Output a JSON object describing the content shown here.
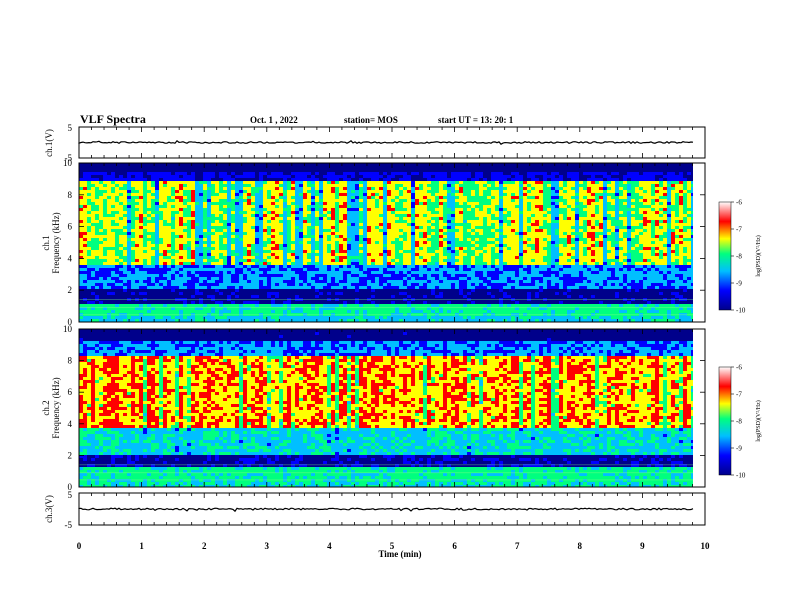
{
  "header": {
    "title": "VLF Spectra",
    "date": "Oct. 1 , 2022",
    "station": "station= MOS",
    "start_ut": "start UT = 13: 20: 1"
  },
  "colormap": [
    "#00008b",
    "#0000ff",
    "#00bfff",
    "#00ff7f",
    "#ffff00",
    "#ff0000",
    "#ffffff"
  ],
  "chart_data": [
    {
      "type": "line",
      "panel": "ch1-waveform",
      "ylabel": "ch.1(V)",
      "yticks": [
        "5",
        "-5"
      ],
      "ylim": [
        -5,
        5
      ],
      "baseline": 0
    },
    {
      "type": "heatmap",
      "panel": "ch1-spectrogram",
      "ylabel_top": "ch.1",
      "ylabel": "Frequency (kHz)",
      "yticks": [
        "0",
        "2",
        "4",
        "6",
        "8",
        "10"
      ],
      "ylim": [
        0,
        10
      ],
      "colorbar": {
        "label": "log(PSD)(V²/Hz)",
        "ticks": [
          "-6",
          "-7",
          "-8",
          "-9",
          "-10"
        ],
        "range": [
          -10,
          -6
        ]
      }
    },
    {
      "type": "heatmap",
      "panel": "ch2-spectrogram",
      "ylabel_top": "ch.2",
      "ylabel": "Frequency (kHz)",
      "yticks": [
        "0",
        "2",
        "4",
        "6",
        "8",
        "10"
      ],
      "ylim": [
        0,
        10
      ],
      "colorbar": {
        "label": "log(PSD)(V²/Hz)",
        "ticks": [
          "-6",
          "-7",
          "-8",
          "-9",
          "-10"
        ],
        "range": [
          -10,
          -6
        ]
      }
    },
    {
      "type": "line",
      "panel": "ch3-waveform",
      "ylabel": "ch.3(V)",
      "yticks": [
        "5",
        "-5"
      ],
      "ylim": [
        -5,
        5
      ],
      "baseline": 0
    }
  ],
  "xaxis": {
    "label": "Time (min)",
    "ticks": [
      "0",
      "1",
      "2",
      "3",
      "4",
      "5",
      "6",
      "7",
      "8",
      "9",
      "10"
    ],
    "xlim": [
      0,
      10
    ]
  }
}
